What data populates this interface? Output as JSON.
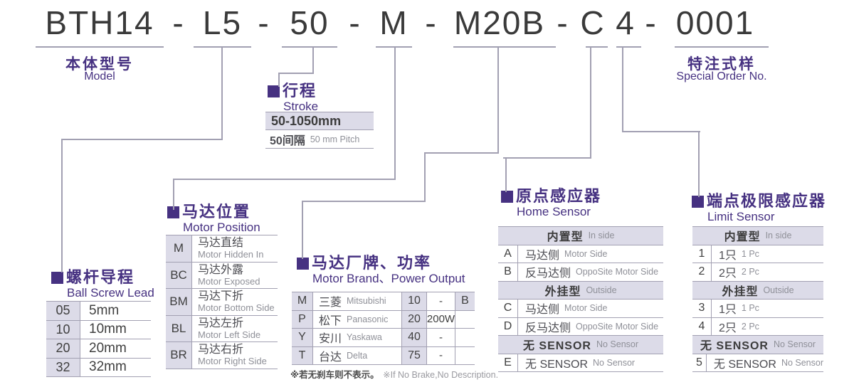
{
  "colors": {
    "purple": "#463181",
    "lavender": "#dcdbe8",
    "line_gray": "#a2a0b2",
    "text_dark": "#3a3a3a",
    "text_gray": "#8f9098"
  },
  "model": {
    "separator": "-",
    "segments": [
      {
        "text": "BTH14"
      },
      {
        "text": "L5"
      },
      {
        "text": "50"
      },
      {
        "text": "M"
      },
      {
        "text": "M20B"
      },
      {
        "text": "C"
      },
      {
        "text": "4"
      },
      {
        "text": "0001"
      }
    ],
    "labels": {
      "model_cn": "本体型号",
      "model_en": "Model",
      "special_cn": "特注式样",
      "special_en": "Special Order No."
    }
  },
  "sections": {
    "ball_screw_lead": {
      "title_cn": "螺杆导程",
      "title_en": "Ball Screw Lead",
      "rows": [
        [
          "05",
          "5mm"
        ],
        [
          "10",
          "10mm"
        ],
        [
          "20",
          "20mm"
        ],
        [
          "32",
          "32mm"
        ]
      ]
    },
    "stroke": {
      "title_cn": "行程",
      "title_en": "Stroke",
      "range": "50-1050mm",
      "pitch_cn": "50间隔",
      "pitch_en": "50 mm Pitch"
    },
    "motor_position": {
      "title_cn": "马达位置",
      "title_en": "Motor Position",
      "rows": [
        [
          "M",
          "马达直结",
          "Motor Hidden In"
        ],
        [
          "BC",
          "马达外露",
          "Motor Exposed"
        ],
        [
          "BM",
          "马达下折",
          "Motor Bottom Side"
        ],
        [
          "BL",
          "马达左折",
          "Motor Left Side"
        ],
        [
          "BR",
          "马达右折",
          "Motor Right Side"
        ]
      ]
    },
    "motor_brand": {
      "title_cn": "马达厂牌、功率",
      "title_en": "Motor Brand、Power Output",
      "rows": [
        [
          "M",
          "三菱",
          "Mitsubishi",
          "10",
          "-",
          "B"
        ],
        [
          "P",
          "松下",
          "Panasonic",
          "20",
          "200W",
          ""
        ],
        [
          "Y",
          "安川",
          "Yaskawa",
          "40",
          "-",
          ""
        ],
        [
          "T",
          "台达",
          "Delta",
          "75",
          "-",
          ""
        ]
      ],
      "note_cn": "※若无刹车则不表示。",
      "note_en": "※If No Brake,No Description."
    },
    "home_sensor": {
      "title_cn": "原点感应器",
      "title_en": "Home Sensor",
      "groups": [
        {
          "header_cn": "内置型",
          "header_en": "In side",
          "rows": [
            [
              "A",
              "马达侧",
              "Motor Side"
            ],
            [
              "B",
              "反马达侧",
              "OppoSite Motor Side"
            ]
          ]
        },
        {
          "header_cn": "外挂型",
          "header_en": "Outside",
          "rows": [
            [
              "C",
              "马达侧",
              "Motor Side"
            ],
            [
              "D",
              "反马达侧",
              "OppoSite Motor Side"
            ]
          ]
        },
        {
          "header_cn": "无 SENSOR",
          "header_en": "No Sensor",
          "rows": [
            [
              "E",
              "无 SENSOR",
              "No Sensor"
            ]
          ]
        }
      ]
    },
    "limit_sensor": {
      "title_cn": "端点极限感应器",
      "title_en": "Limit Sensor",
      "groups": [
        {
          "header_cn": "内置型",
          "header_en": "In side",
          "rows": [
            [
              "1",
              "1只",
              "1 Pc"
            ],
            [
              "2",
              "2只",
              "2 Pc"
            ]
          ]
        },
        {
          "header_cn": "外挂型",
          "header_en": "Outside",
          "rows": [
            [
              "3",
              "1只",
              "1 Pc"
            ],
            [
              "4",
              "2只",
              "2 Pc"
            ]
          ]
        },
        {
          "header_cn": "无 SENSOR",
          "header_en": "No Sensor",
          "rows": [
            [
              "5",
              "无 SENSOR",
              "No Sensor"
            ]
          ]
        }
      ]
    }
  }
}
